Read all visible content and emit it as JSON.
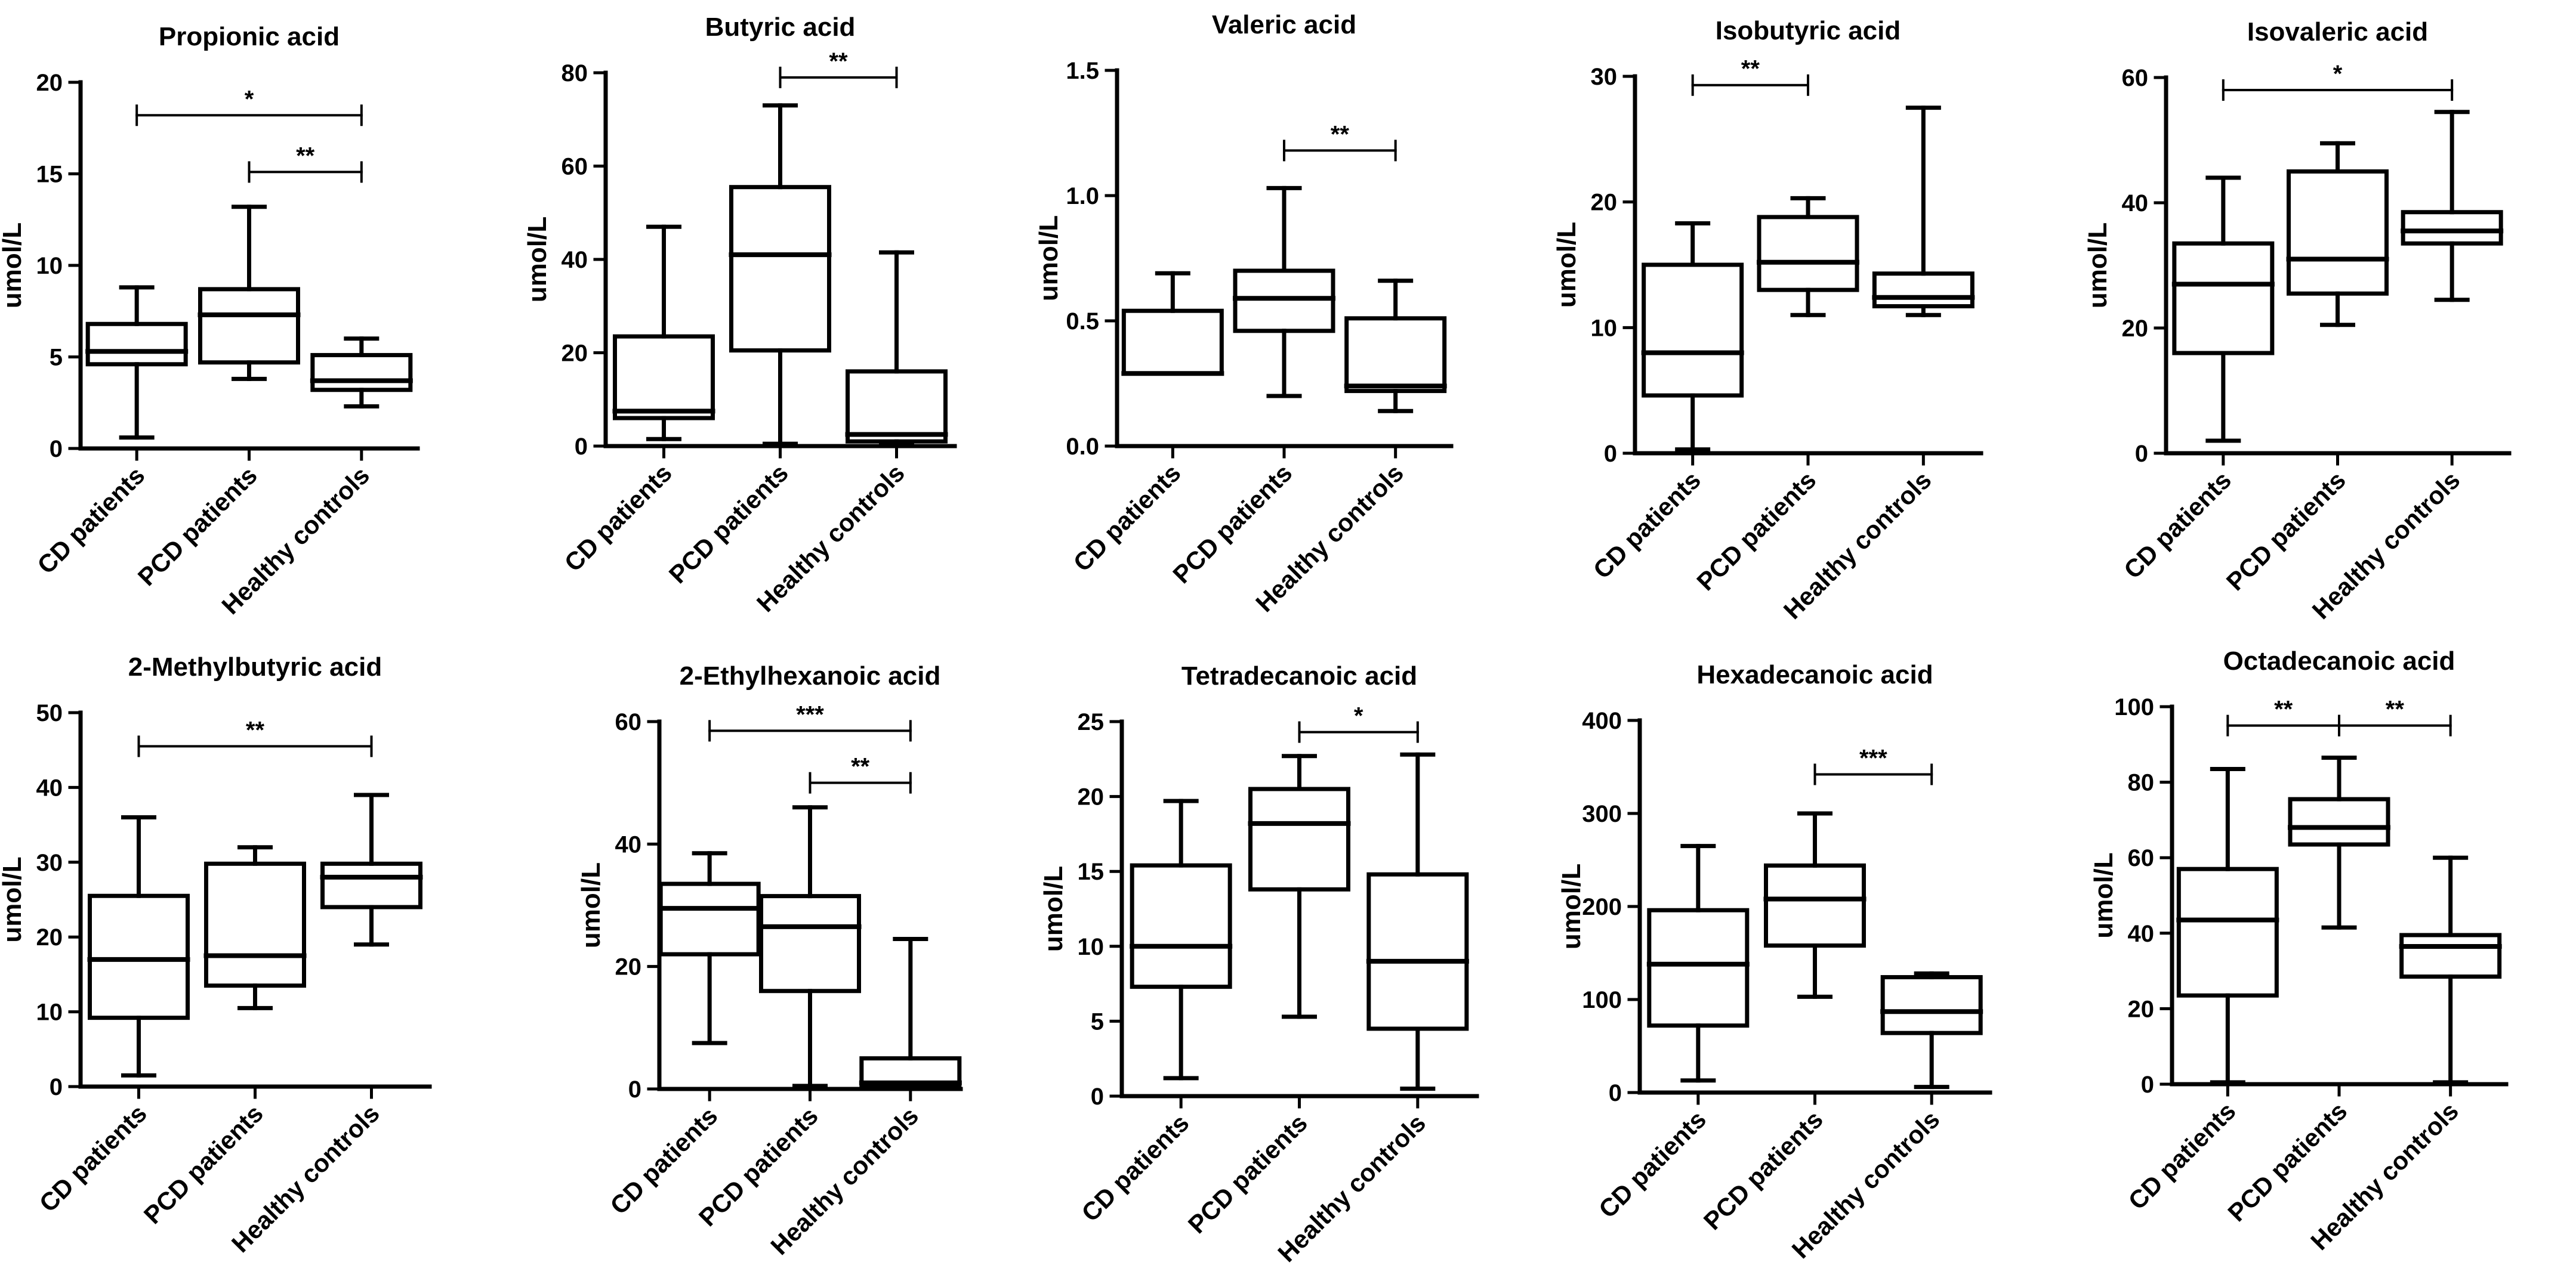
{
  "figure": {
    "background": "#ffffff",
    "stroke_color": "#000000"
  },
  "chart_data": [
    {
      "type": "box",
      "title": "Propionic acid",
      "ylabel": "umol/L",
      "xlabel": "",
      "categories": [
        "CD patients",
        "PCD patients",
        "Healthy controls"
      ],
      "ylim": [
        0,
        20
      ],
      "yticks": [
        0,
        5,
        10,
        15,
        20
      ],
      "ytick_labels": [
        "0",
        "5",
        "10",
        "15",
        "20"
      ],
      "boxes": [
        {
          "min": 0.6,
          "q1": 4.6,
          "median": 5.3,
          "q3": 6.8,
          "max": 8.8
        },
        {
          "min": 3.8,
          "q1": 4.7,
          "median": 7.3,
          "q3": 8.7,
          "max": 13.2
        },
        {
          "min": 2.3,
          "q1": 3.2,
          "median": 3.7,
          "q3": 5.1,
          "max": 6.0
        }
      ],
      "significance": [
        {
          "from": 0,
          "to": 2,
          "y": 18.2,
          "label": "*"
        },
        {
          "from": 1,
          "to": 2,
          "y": 15.1,
          "label": "**"
        }
      ]
    },
    {
      "type": "box",
      "title": "Butyric acid",
      "ylabel": "umol/L",
      "xlabel": "",
      "categories": [
        "CD patients",
        "PCD patients",
        "Healthy controls"
      ],
      "ylim": [
        0,
        80
      ],
      "yticks": [
        0,
        20,
        40,
        60,
        80
      ],
      "ytick_labels": [
        "0",
        "20",
        "40",
        "60",
        "80"
      ],
      "boxes": [
        {
          "min": 1.5,
          "q1": 6.0,
          "median": 7.5,
          "q3": 23.5,
          "max": 47.0
        },
        {
          "min": 0.5,
          "q1": 20.5,
          "median": 41.0,
          "q3": 55.5,
          "max": 73.0
        },
        {
          "min": 0.3,
          "q1": 1.0,
          "median": 2.5,
          "q3": 16.0,
          "max": 41.5
        }
      ],
      "significance": [
        {
          "from": 1,
          "to": 2,
          "y": 79,
          "label": "**"
        }
      ]
    },
    {
      "type": "box",
      "title": "Valeric acid",
      "ylabel": "umol/L",
      "xlabel": "",
      "categories": [
        "CD patients",
        "PCD patients",
        "Healthy controls"
      ],
      "ylim": [
        0,
        1.5
      ],
      "yticks": [
        0,
        0.5,
        1.0,
        1.5
      ],
      "ytick_labels": [
        "0.0",
        "0.5",
        "1.0",
        "1.5"
      ],
      "boxes": [
        {
          "min": 0.29,
          "q1": 0.29,
          "median": 0.29,
          "q3": 0.54,
          "max": 0.69
        },
        {
          "min": 0.2,
          "q1": 0.46,
          "median": 0.59,
          "q3": 0.7,
          "max": 1.03
        },
        {
          "min": 0.14,
          "q1": 0.22,
          "median": 0.24,
          "q3": 0.51,
          "max": 0.66
        }
      ],
      "significance": [
        {
          "from": 1,
          "to": 2,
          "y": 1.18,
          "label": "**"
        }
      ]
    },
    {
      "type": "box",
      "title": "Isobutyric acid",
      "ylabel": "umol/L",
      "xlabel": "",
      "categories": [
        "CD patients",
        "PCD patients",
        "Healthy controls"
      ],
      "ylim": [
        0,
        30
      ],
      "yticks": [
        0,
        10,
        20,
        30
      ],
      "ytick_labels": [
        "0",
        "10",
        "20",
        "30"
      ],
      "boxes": [
        {
          "min": 0.3,
          "q1": 4.6,
          "median": 8.0,
          "q3": 15.0,
          "max": 18.3
        },
        {
          "min": 11.0,
          "q1": 13.0,
          "median": 15.2,
          "q3": 18.8,
          "max": 20.3
        },
        {
          "min": 11.0,
          "q1": 11.7,
          "median": 12.4,
          "q3": 14.3,
          "max": 27.5
        }
      ],
      "significance": [
        {
          "from": 0,
          "to": 1,
          "y": 29.3,
          "label": "**"
        }
      ]
    },
    {
      "type": "box",
      "title": "Isovaleric acid",
      "ylabel": "umol/L",
      "xlabel": "",
      "categories": [
        "CD patients",
        "PCD patients",
        "Healthy controls"
      ],
      "ylim": [
        0,
        60
      ],
      "yticks": [
        0,
        20,
        40,
        60
      ],
      "ytick_labels": [
        "0",
        "20",
        "40",
        "60"
      ],
      "boxes": [
        {
          "min": 2.0,
          "q1": 16.0,
          "median": 27.0,
          "q3": 33.5,
          "max": 44.0
        },
        {
          "min": 20.5,
          "q1": 25.5,
          "median": 31.0,
          "q3": 45.0,
          "max": 49.5
        },
        {
          "min": 24.5,
          "q1": 33.5,
          "median": 35.5,
          "q3": 38.5,
          "max": 54.5
        }
      ],
      "significance": [
        {
          "from": 0,
          "to": 2,
          "y": 58,
          "label": "*"
        }
      ]
    },
    {
      "type": "box",
      "title": "2-Methylbutyric acid",
      "ylabel": "umol/L",
      "xlabel": "",
      "categories": [
        "CD patients",
        "PCD patients",
        "Healthy controls"
      ],
      "ylim": [
        0,
        50
      ],
      "yticks": [
        0,
        10,
        20,
        30,
        40,
        50
      ],
      "ytick_labels": [
        "0",
        "10",
        "20",
        "30",
        "40",
        "50"
      ],
      "boxes": [
        {
          "min": 1.5,
          "q1": 9.2,
          "median": 17.0,
          "q3": 25.5,
          "max": 36.0
        },
        {
          "min": 10.5,
          "q1": 13.5,
          "median": 17.5,
          "q3": 29.8,
          "max": 32.0
        },
        {
          "min": 19.0,
          "q1": 24.0,
          "median": 28.0,
          "q3": 29.8,
          "max": 39.0
        }
      ],
      "significance": [
        {
          "from": 0,
          "to": 2,
          "y": 45.5,
          "label": "**"
        }
      ]
    },
    {
      "type": "box",
      "title": "2-Ethylhexanoic acid",
      "ylabel": "umol/L",
      "xlabel": "",
      "categories": [
        "CD patients",
        "PCD patients",
        "Healthy controls"
      ],
      "ylim": [
        0,
        60
      ],
      "yticks": [
        0,
        20,
        40,
        60
      ],
      "ytick_labels": [
        "0",
        "20",
        "40",
        "60"
      ],
      "boxes": [
        {
          "min": 7.5,
          "q1": 22.0,
          "median": 29.5,
          "q3": 33.5,
          "max": 38.5
        },
        {
          "min": 0.5,
          "q1": 16.0,
          "median": 26.5,
          "q3": 31.5,
          "max": 46.0
        },
        {
          "min": 0.3,
          "q1": 0.5,
          "median": 1.0,
          "q3": 5.0,
          "max": 24.5
        }
      ],
      "significance": [
        {
          "from": 0,
          "to": 2,
          "y": 58.5,
          "label": "***"
        },
        {
          "from": 1,
          "to": 2,
          "y": 50.0,
          "label": "**"
        }
      ]
    },
    {
      "type": "box",
      "title": "Tetradecanoic acid",
      "ylabel": "umol/L",
      "xlabel": "",
      "categories": [
        "CD patients",
        "PCD patients",
        "Healthy controls"
      ],
      "ylim": [
        0,
        25
      ],
      "yticks": [
        0,
        5,
        10,
        15,
        20,
        25
      ],
      "ytick_labels": [
        "0",
        "5",
        "10",
        "15",
        "20",
        "25"
      ],
      "boxes": [
        {
          "min": 1.2,
          "q1": 7.3,
          "median": 10.0,
          "q3": 15.4,
          "max": 19.7
        },
        {
          "min": 5.3,
          "q1": 13.8,
          "median": 18.2,
          "q3": 20.5,
          "max": 22.7
        },
        {
          "min": 0.5,
          "q1": 4.5,
          "median": 9.0,
          "q3": 14.8,
          "max": 22.8
        }
      ],
      "significance": [
        {
          "from": 1,
          "to": 2,
          "y": 24.3,
          "label": "*"
        }
      ]
    },
    {
      "type": "box",
      "title": "Hexadecanoic acid",
      "ylabel": "umol/L",
      "xlabel": "",
      "categories": [
        "CD patients",
        "PCD patients",
        "Healthy controls"
      ],
      "ylim": [
        0,
        400
      ],
      "yticks": [
        0,
        100,
        200,
        300,
        400
      ],
      "ytick_labels": [
        "0",
        "100",
        "200",
        "300",
        "400"
      ],
      "boxes": [
        {
          "min": 13,
          "q1": 72,
          "median": 138,
          "q3": 196,
          "max": 265
        },
        {
          "min": 103,
          "q1": 158,
          "median": 208,
          "q3": 244,
          "max": 300
        },
        {
          "min": 6,
          "q1": 64,
          "median": 87,
          "q3": 124,
          "max": 128
        }
      ],
      "significance": [
        {
          "from": 1,
          "to": 2,
          "y": 342,
          "label": "***"
        }
      ]
    },
    {
      "type": "box",
      "title": "Octadecanoic acid",
      "ylabel": "umol/L",
      "xlabel": "",
      "categories": [
        "CD patients",
        "PCD patients",
        "Healthy controls"
      ],
      "ylim": [
        0,
        100
      ],
      "yticks": [
        0,
        20,
        40,
        60,
        80,
        100
      ],
      "ytick_labels": [
        "0",
        "20",
        "40",
        "60",
        "80",
        "100"
      ],
      "boxes": [
        {
          "min": 0.5,
          "q1": 23.5,
          "median": 43.5,
          "q3": 57.0,
          "max": 83.5
        },
        {
          "min": 41.5,
          "q1": 63.5,
          "median": 68.0,
          "q3": 75.5,
          "max": 86.5
        },
        {
          "min": 0.5,
          "q1": 28.5,
          "median": 36.5,
          "q3": 39.5,
          "max": 60.0
        }
      ],
      "significance": [
        {
          "from": 0,
          "to": 1,
          "y": 95,
          "label": "**"
        },
        {
          "from": 1,
          "to": 2,
          "y": 95,
          "label": "**"
        }
      ]
    }
  ]
}
